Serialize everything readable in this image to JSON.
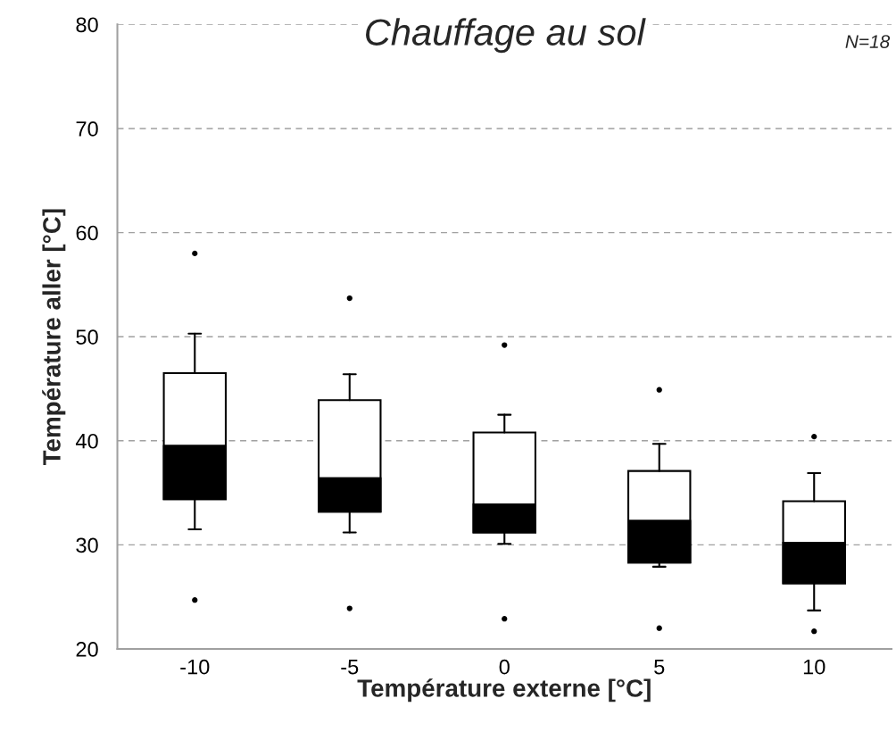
{
  "chart_data": {
    "type": "box",
    "title": "Chauffage au sol",
    "xlabel": "Température externe [°C]",
    "ylabel": "Température aller [°C]",
    "annotations": [
      "N=18"
    ],
    "categories": [
      "-10",
      "-5",
      "0",
      "5",
      "10"
    ],
    "boxes": [
      {
        "low": 31.5,
        "q1": 34.4,
        "median": 39.5,
        "q3": 46.5,
        "high": 50.3,
        "outliers": [
          58.0,
          24.7
        ]
      },
      {
        "low": 31.2,
        "q1": 33.2,
        "median": 36.4,
        "q3": 43.9,
        "high": 46.4,
        "outliers": [
          53.7,
          23.9
        ]
      },
      {
        "low": 30.1,
        "q1": 31.2,
        "median": 33.9,
        "q3": 40.8,
        "high": 42.5,
        "outliers": [
          49.2,
          22.9
        ]
      },
      {
        "low": 27.9,
        "q1": 28.3,
        "median": 32.3,
        "q3": 37.1,
        "high": 39.7,
        "outliers": [
          44.9,
          22.0
        ]
      },
      {
        "low": 23.7,
        "q1": 26.3,
        "median": 30.2,
        "q3": 34.2,
        "high": 36.9,
        "outliers": [
          40.4,
          21.7
        ]
      }
    ],
    "ylim": [
      20,
      80
    ],
    "yticks": [
      20,
      30,
      40,
      50,
      60,
      70,
      80
    ],
    "grid": "y"
  }
}
